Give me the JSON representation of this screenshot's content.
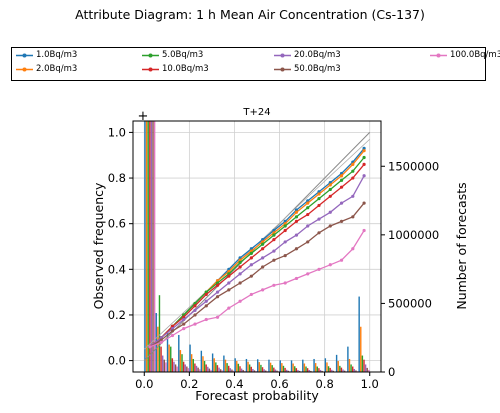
{
  "figure": {
    "title": "Attribute Diagram: 1 h Mean Air Concentration (Cs-137)"
  },
  "legend": {
    "items": [
      {
        "label": "1.0Bq/m3",
        "color": "#1f77b4"
      },
      {
        "label": "2.0Bq/m3",
        "color": "#ff7f0e"
      },
      {
        "label": "5.0Bq/m3",
        "color": "#2ca02c"
      },
      {
        "label": "10.0Bq/m3",
        "color": "#d62728"
      },
      {
        "label": "20.0Bq/m3",
        "color": "#9467bd"
      },
      {
        "label": "50.0Bq/m3",
        "color": "#8c564b"
      },
      {
        "label": "100.0Bq/m3",
        "color": "#e377c2"
      }
    ]
  },
  "chart_data": {
    "type": "line",
    "title": "T+24",
    "xlabel": "Forecast probability",
    "ylabel": "Observed frequency",
    "y2label": "Number of forecasts",
    "xlim": [
      -0.05,
      1.05
    ],
    "ylim": [
      -0.05,
      1.05
    ],
    "y2lim": [
      0,
      1830000
    ],
    "xticks": [
      "0.0",
      "0.2",
      "0.4",
      "0.6",
      "0.8",
      "1.0"
    ],
    "yticks": [
      "0.0",
      "0.2",
      "0.4",
      "0.6",
      "0.8",
      "1.0"
    ],
    "y2ticks": [
      "0",
      "500000",
      "1000000",
      "1500000"
    ],
    "grid": true,
    "climatology_marker": "+",
    "x": [
      0.025,
      0.075,
      0.125,
      0.175,
      0.225,
      0.275,
      0.325,
      0.375,
      0.425,
      0.475,
      0.525,
      0.575,
      0.625,
      0.675,
      0.725,
      0.775,
      0.825,
      0.875,
      0.925,
      0.975
    ],
    "series": [
      {
        "name": "1.0Bq/m3",
        "color": "#1f77b4",
        "values": [
          0.06,
          0.1,
          0.15,
          0.2,
          0.25,
          0.3,
          0.35,
          0.4,
          0.45,
          0.49,
          0.53,
          0.57,
          0.61,
          0.66,
          0.7,
          0.74,
          0.78,
          0.82,
          0.87,
          0.93
        ]
      },
      {
        "name": "2.0Bq/m3",
        "color": "#ff7f0e",
        "values": [
          0.06,
          0.1,
          0.15,
          0.2,
          0.25,
          0.3,
          0.35,
          0.39,
          0.44,
          0.48,
          0.52,
          0.56,
          0.6,
          0.65,
          0.69,
          0.73,
          0.77,
          0.81,
          0.86,
          0.92
        ]
      },
      {
        "name": "5.0Bq/m3",
        "color": "#2ca02c",
        "values": [
          0.06,
          0.1,
          0.15,
          0.2,
          0.25,
          0.3,
          0.34,
          0.38,
          0.43,
          0.47,
          0.51,
          0.55,
          0.59,
          0.63,
          0.67,
          0.71,
          0.75,
          0.79,
          0.83,
          0.89
        ]
      },
      {
        "name": "10.0Bq/m3",
        "color": "#d62728",
        "values": [
          0.06,
          0.1,
          0.15,
          0.19,
          0.24,
          0.29,
          0.33,
          0.37,
          0.41,
          0.45,
          0.49,
          0.53,
          0.57,
          0.61,
          0.64,
          0.68,
          0.72,
          0.76,
          0.8,
          0.86
        ]
      },
      {
        "name": "20.0Bq/m3",
        "color": "#9467bd",
        "values": [
          0.06,
          0.1,
          0.14,
          0.18,
          0.22,
          0.26,
          0.3,
          0.34,
          0.38,
          0.42,
          0.45,
          0.48,
          0.52,
          0.55,
          0.59,
          0.62,
          0.65,
          0.69,
          0.72,
          0.81
        ]
      },
      {
        "name": "50.0Bq/m3",
        "color": "#8c564b",
        "values": [
          0.06,
          0.09,
          0.13,
          0.16,
          0.2,
          0.24,
          0.28,
          0.31,
          0.34,
          0.37,
          0.41,
          0.44,
          0.46,
          0.49,
          0.52,
          0.56,
          0.59,
          0.61,
          0.63,
          0.69
        ]
      },
      {
        "name": "100.0Bq/m3",
        "color": "#e377c2",
        "values": [
          0.06,
          0.08,
          0.11,
          0.14,
          0.16,
          0.18,
          0.19,
          0.23,
          0.26,
          0.29,
          0.31,
          0.33,
          0.34,
          0.36,
          0.38,
          0.4,
          0.42,
          0.44,
          0.49,
          0.57
        ]
      }
    ],
    "histogram": {
      "bin_centers": [
        0.025,
        0.075,
        0.125,
        0.175,
        0.225,
        0.275,
        0.325,
        0.375,
        0.425,
        0.475,
        0.525,
        0.575,
        0.625,
        0.675,
        0.725,
        0.775,
        0.825,
        0.875,
        0.925,
        0.975
      ],
      "counts": [
        [
          1830000,
          430000,
          290000,
          270000,
          200000,
          155000,
          135000,
          120000,
          100000,
          95000,
          93000,
          90000,
          85000,
          85000,
          90000,
          95000,
          100000,
          125000,
          185000,
          550000
        ],
        [
          1830000,
          330000,
          200000,
          160000,
          130000,
          115000,
          100000,
          90000,
          80000,
          75000,
          72000,
          68000,
          65000,
          62000,
          62000,
          65000,
          70000,
          80000,
          95000,
          330000
        ],
        [
          1830000,
          560000,
          185000,
          130000,
          95000,
          80000,
          70000,
          65000,
          60000,
          55000,
          52000,
          50000,
          45000,
          42000,
          40000,
          40000,
          42000,
          45000,
          55000,
          120000
        ],
        [
          1830000,
          185000,
          100000,
          75000,
          62000,
          55000,
          50000,
          45000,
          42000,
          38000,
          35000,
          32000,
          30000,
          28000,
          28000,
          28000,
          30000,
          32000,
          40000,
          90000
        ],
        [
          1830000,
          120000,
          75000,
          55000,
          45000,
          38000,
          32000,
          28000,
          25000,
          22000,
          20000,
          18000,
          16000,
          15000,
          15000,
          15000,
          16000,
          18000,
          22000,
          55000
        ],
        [
          1830000,
          90000,
          55000,
          40000,
          32000,
          25000,
          20000,
          18000,
          15000,
          12000,
          11000,
          10000,
          9000,
          8000,
          8000,
          8000,
          9000,
          10000,
          12000,
          30000
        ],
        [
          1830000,
          70000,
          40000,
          28000,
          20000,
          15000,
          12000,
          10000,
          8000,
          7000,
          6000,
          5000,
          5000,
          4000,
          4000,
          4000,
          4000,
          5000,
          6000,
          15000
        ]
      ]
    }
  }
}
